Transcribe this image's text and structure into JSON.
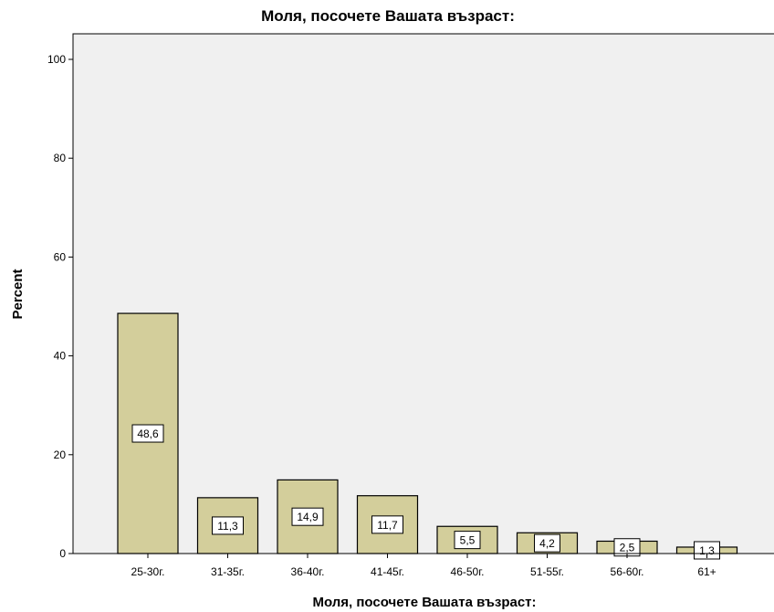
{
  "chart_data": {
    "type": "bar",
    "title": "Моля, посочете Вашата възраст:",
    "xlabel": "Моля, посочете Вашата възраст:",
    "ylabel": "Percent",
    "categories": [
      "25-30г.",
      "31-35г.",
      "36-40г.",
      "41-45г.",
      "46-50г.",
      "51-55г.",
      "56-60г.",
      "61+"
    ],
    "values": [
      48.6,
      11.3,
      14.9,
      11.7,
      5.5,
      4.2,
      2.5,
      1.3
    ],
    "data_labels": [
      "48,6",
      "11,3",
      "14,9",
      "11,7",
      "5,5",
      "4,2",
      "2,5",
      "1,3"
    ],
    "yticks": [
      0,
      20,
      40,
      60,
      80,
      100
    ],
    "ylim": [
      0,
      100
    ],
    "grid": false,
    "colors": {
      "bar_fill": "#d3ce9b",
      "bar_stroke": "#000000",
      "plot_background": "#f0f0f0",
      "label_box_fill": "#ffffff"
    }
  }
}
